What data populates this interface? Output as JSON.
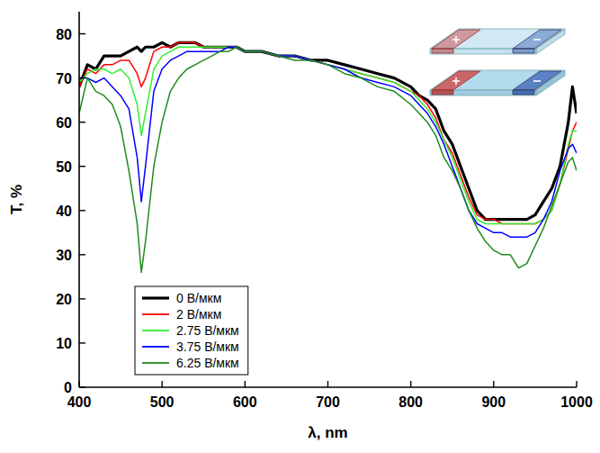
{
  "chart_data": {
    "type": "line",
    "x_label": "λ, nm",
    "y_label": "T, %",
    "x": [
      400,
      410,
      420,
      430,
      440,
      450,
      460,
      470,
      475,
      480,
      490,
      500,
      510,
      520,
      530,
      540,
      550,
      560,
      570,
      580,
      590,
      600,
      620,
      640,
      660,
      680,
      700,
      720,
      740,
      760,
      780,
      800,
      810,
      820,
      830,
      840,
      850,
      860,
      870,
      880,
      890,
      900,
      910,
      920,
      930,
      940,
      950,
      960,
      970,
      980,
      990,
      995,
      1000
    ],
    "xlim": [
      400,
      1000
    ],
    "ylim": [
      0,
      85
    ],
    "xticks": [
      400,
      500,
      600,
      700,
      800,
      900,
      1000
    ],
    "yticks": [
      0,
      10,
      20,
      30,
      40,
      50,
      60,
      70,
      80
    ],
    "grid": false,
    "legend": "lower left",
    "series": [
      {
        "name": "0 В/мкм",
        "color": "#000000",
        "values": [
          68,
          73,
          72,
          75,
          75,
          75,
          76,
          77,
          76,
          77,
          77,
          78,
          77,
          78,
          78,
          78,
          77,
          77,
          77,
          77,
          77,
          76,
          76,
          75,
          75,
          74,
          74,
          73,
          72,
          71,
          70,
          68,
          66,
          65,
          63,
          58,
          55,
          50,
          45,
          40,
          38,
          38,
          38,
          38,
          38,
          38,
          39,
          42,
          45,
          50,
          60,
          68,
          62
        ]
      },
      {
        "name": "2 В/мкм",
        "color": "#ff0000",
        "values": [
          68,
          72,
          71,
          73,
          73,
          74,
          74,
          71,
          68,
          70,
          76,
          77,
          77,
          78,
          78,
          78,
          77,
          77,
          77,
          77,
          77,
          76,
          76,
          75,
          75,
          74,
          73,
          72,
          71,
          70,
          69,
          67,
          66,
          64,
          61,
          56,
          53,
          48,
          43,
          39,
          38,
          38,
          37,
          37,
          37,
          37,
          37,
          38,
          40,
          46,
          54,
          58,
          60
        ]
      },
      {
        "name": "2.75 В/мкм",
        "color": "#33ee33",
        "values": [
          69,
          71,
          72,
          72,
          71,
          72,
          70,
          64,
          57,
          62,
          72,
          75,
          76,
          77,
          77,
          77,
          77,
          77,
          77,
          77,
          77,
          76,
          76,
          75,
          75,
          74,
          73,
          72,
          71,
          70,
          69,
          67,
          65,
          63,
          60,
          56,
          52,
          47,
          42,
          38,
          37,
          37,
          37,
          37,
          37,
          37,
          37,
          38,
          40,
          46,
          55,
          58,
          58
        ]
      },
      {
        "name": "3.75 В/мкм",
        "color": "#0000ff",
        "values": [
          70,
          70,
          69,
          70,
          68,
          66,
          63,
          52,
          42,
          50,
          67,
          72,
          74,
          75,
          76,
          76,
          76,
          76,
          76,
          77,
          77,
          76,
          76,
          75,
          75,
          74,
          73,
          72,
          70,
          69,
          68,
          66,
          64,
          62,
          59,
          55,
          50,
          45,
          40,
          37,
          36,
          35,
          35,
          34,
          34,
          34,
          35,
          38,
          42,
          49,
          54,
          55,
          53
        ]
      },
      {
        "name": "6.25 В/мкм",
        "color": "#1e8a1e",
        "values": [
          62,
          70,
          67,
          66,
          64,
          59,
          49,
          37,
          26,
          33,
          50,
          60,
          67,
          70,
          72,
          73,
          74,
          75,
          76,
          76,
          77,
          76,
          76,
          75,
          74,
          74,
          73,
          71,
          70,
          68,
          67,
          64,
          62,
          60,
          57,
          52,
          49,
          45,
          40,
          36,
          33,
          31,
          30,
          30,
          27,
          28,
          32,
          36,
          41,
          46,
          51,
          52,
          49
        ]
      }
    ]
  }
}
